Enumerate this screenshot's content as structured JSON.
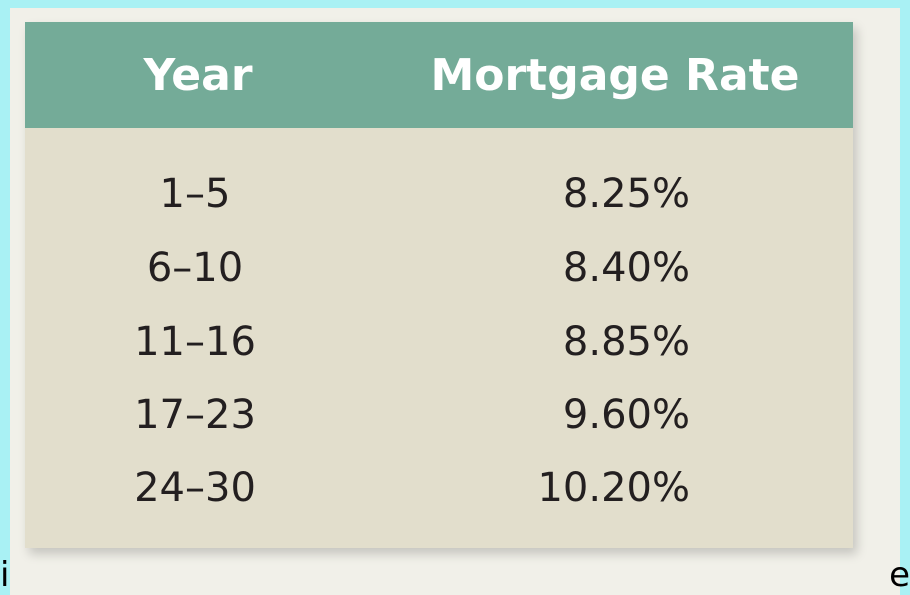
{
  "table": {
    "headers": {
      "year": "Year",
      "rate": "Mortgage Rate"
    },
    "rows": [
      {
        "year": "1–5",
        "rate": "8.25%"
      },
      {
        "year": "6–10",
        "rate": "8.40%"
      },
      {
        "year": "11–16",
        "rate": "8.85%"
      },
      {
        "year": "17–23",
        "rate": "9.60%"
      },
      {
        "year": "24–30",
        "rate": "10.20%"
      }
    ]
  },
  "edges": {
    "left": "i",
    "right": "e"
  },
  "colors": {
    "frame": "#a9f1f4",
    "header": "#74ab98",
    "body": "#e2decc",
    "text": "#231f20"
  }
}
